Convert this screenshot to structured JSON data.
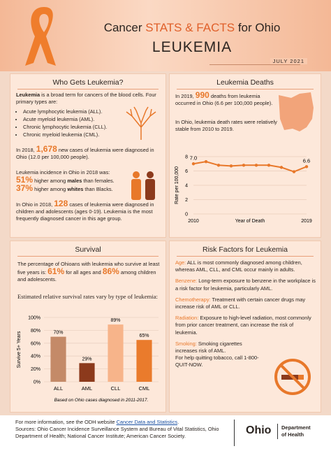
{
  "header": {
    "title_prefix": "Cancer",
    "title_highlight": "STATS & FACTS",
    "title_suffix": "for Ohio",
    "subtitle": "LEUKEMIA",
    "date": "JULY 2021"
  },
  "who": {
    "title": "Who Gets Leukemia?",
    "p1": [
      "Leukemia",
      " is a broad term for cancers of the blood cells. Four primary types are:"
    ],
    "types": [
      "Acute lymphocytic leukemia (ALL).",
      "Acute myeloid leukemia (AML).",
      "Chronic lymphocytic leukemia (CLL).",
      "Chronic myeloid leukemia (CML)."
    ],
    "p2": [
      "In 2018, ",
      "1,678",
      " new cases of leukemia were diagnosed in Ohio (12.0 per 100,000 people)."
    ],
    "p3": {
      "intro": "Leukemia incidence in Ohio in 2018 was:",
      "line1": [
        "51%",
        " higher among ",
        "males",
        " than females."
      ],
      "line2": [
        "37%",
        " higher among ",
        "whites",
        " than Blacks."
      ]
    },
    "p4": [
      "In Ohio in 2018, ",
      "128",
      " cases of leukemia were diagnosed in children and adolescents (ages 0-19). Leukemia is the most frequently diagnosed cancer in this age group."
    ]
  },
  "deaths": {
    "title": "Leukemia Deaths",
    "p1": [
      "In 2019, ",
      "990",
      " deaths from leukemia occurred in Ohio (6.6 per 100,000 people)."
    ],
    "p2": "In Ohio, leukemia death rates were relatively stable from 2010 to 2019."
  },
  "survival": {
    "title": "Survival",
    "p1": [
      "The percentage of Ohioans with leukemia who survive at least five years is: ",
      "61%",
      " for all ages and ",
      "86%",
      " among children and adolescents."
    ]
  },
  "risk": {
    "title": "Risk Factors for Leukemia",
    "items": [
      {
        "label": "Age:",
        "text": "ALL is most commonly diagnosed among children, whereas AML, CLL, and CML occur mainly in adults."
      },
      {
        "label": "Benzene:",
        "text": "Long-term exposure to benzene in the workplace is a risk factor for leukemia, particularly AML."
      },
      {
        "label": "Chemotherapy:",
        "text": "Treatment with certain cancer drugs may increase risk of AML or CLL."
      },
      {
        "label": "Radiation:",
        "text": "Exposure to high-level radiation, most commonly from prior cancer treatment, can increase the risk of leukemia."
      },
      {
        "label": "Smoking:",
        "text": "Smoking cigarettes increases risk of AML."
      }
    ],
    "quit": "For help quitting tobacco, call 1-800-QUIT-NOW."
  },
  "footer": {
    "info": "For more information, see the ODH website ",
    "link": "Cancer Data and Statistics",
    "info_end": ".",
    "sources": "Sources: Ohio Cancer Incidence Surveillance System and Bureau of Vital Statistics, Ohio Department of Health; National Cancer Institute; American Cancer Society.",
    "logo": "Ohio",
    "logo_dept": "Department",
    "logo_health": "of Health"
  },
  "chart_data": [
    {
      "type": "line",
      "x": [
        2010,
        2011,
        2012,
        2013,
        2014,
        2015,
        2016,
        2017,
        2018,
        2019
      ],
      "values": [
        7.0,
        7.3,
        6.8,
        6.7,
        6.8,
        6.8,
        6.8,
        6.5,
        5.9,
        6.6
      ],
      "value_labels": [
        "7.0",
        null,
        null,
        null,
        null,
        null,
        null,
        null,
        null,
        "6.6"
      ],
      "color": "#e8782a",
      "xlim": [
        2010,
        2019
      ],
      "xticks": [
        2010,
        2019
      ],
      "ylim": [
        0,
        8
      ],
      "yticks": [
        0,
        2,
        4,
        6,
        8
      ],
      "xlabel": "Year of Death",
      "ylabel": "Rate per 100,000",
      "grid": true
    },
    {
      "type": "bar",
      "title": "Estimated relative survival rates vary by type of leukemia:",
      "categories": [
        "ALL",
        "AML",
        "CLL",
        "CML"
      ],
      "values": [
        70,
        29,
        89,
        65
      ],
      "value_labels": [
        "70%",
        "29%",
        "89%",
        "65%"
      ],
      "colors": [
        "#c48a68",
        "#8c3a1c",
        "#f7b48a",
        "#ea7b2c"
      ],
      "ylim": [
        0,
        100
      ],
      "yticks": [
        {
          "value": 0,
          "label": "0%"
        },
        {
          "value": 20,
          "label": "20%"
        },
        {
          "value": 40,
          "label": "40%"
        },
        {
          "value": 60,
          "label": "60%"
        },
        {
          "value": 80,
          "label": "80%"
        },
        {
          "value": 100,
          "label": "100%"
        }
      ],
      "ylabel": "Survive 5+ Years",
      "annotation": "Based on Ohio cases diagnosed in 2011-2017.",
      "grid": true
    }
  ]
}
